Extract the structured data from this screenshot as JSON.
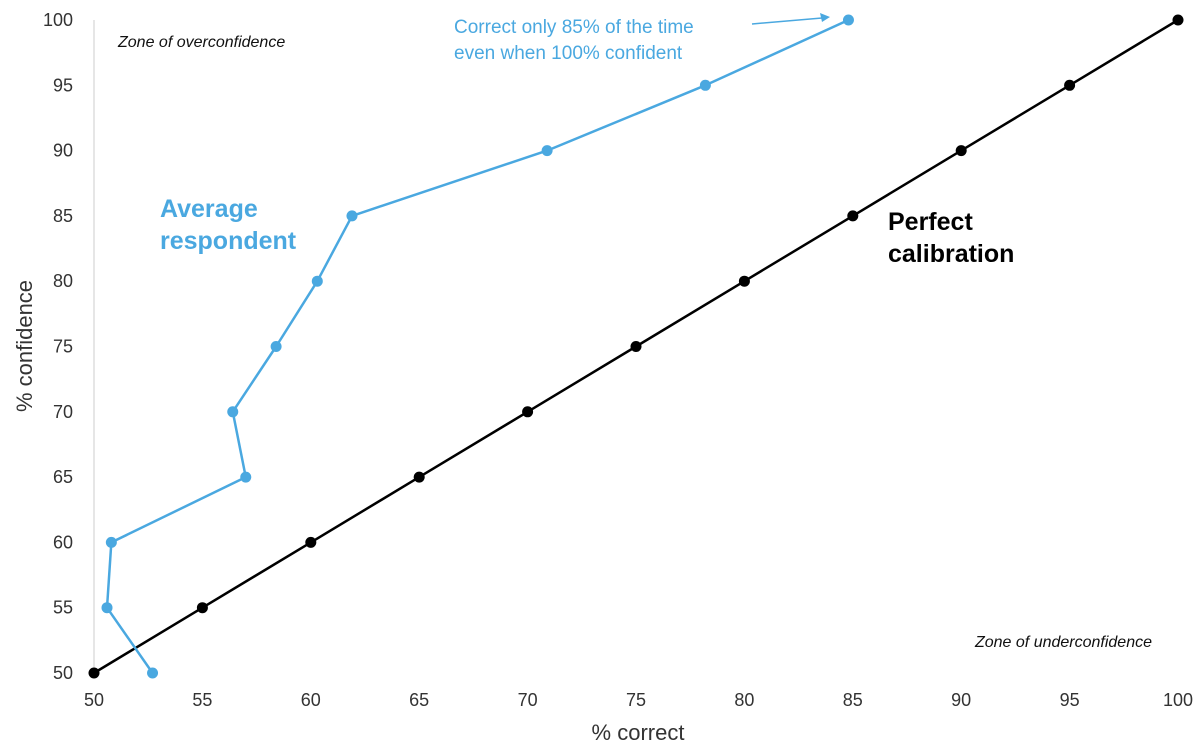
{
  "chart_data": {
    "type": "line",
    "xlabel": "% correct",
    "ylabel": "% confidence",
    "xlim": [
      50,
      100
    ],
    "ylim": [
      50,
      100
    ],
    "x_ticks": [
      50,
      55,
      60,
      65,
      70,
      75,
      80,
      85,
      90,
      95,
      100
    ],
    "y_ticks": [
      50,
      55,
      60,
      65,
      70,
      75,
      80,
      85,
      90,
      95,
      100
    ],
    "grid": false,
    "series": [
      {
        "name_lines": [
          "Average",
          "respondent"
        ],
        "color": "#4aa8e0",
        "points": [
          {
            "x": 52.7,
            "y": 50
          },
          {
            "x": 50.6,
            "y": 55
          },
          {
            "x": 50.8,
            "y": 60
          },
          {
            "x": 57.0,
            "y": 65
          },
          {
            "x": 56.4,
            "y": 70
          },
          {
            "x": 58.4,
            "y": 75
          },
          {
            "x": 60.3,
            "y": 80
          },
          {
            "x": 61.9,
            "y": 85
          },
          {
            "x": 70.9,
            "y": 90
          },
          {
            "x": 78.2,
            "y": 95
          },
          {
            "x": 84.8,
            "y": 100
          }
        ]
      },
      {
        "name_lines": [
          "Perfect",
          "calibration"
        ],
        "color": "#000000",
        "points": [
          {
            "x": 50,
            "y": 50
          },
          {
            "x": 55,
            "y": 55
          },
          {
            "x": 60,
            "y": 60
          },
          {
            "x": 65,
            "y": 65
          },
          {
            "x": 70,
            "y": 70
          },
          {
            "x": 75,
            "y": 75
          },
          {
            "x": 80,
            "y": 80
          },
          {
            "x": 85,
            "y": 85
          },
          {
            "x": 90,
            "y": 90
          },
          {
            "x": 95,
            "y": 95
          },
          {
            "x": 100,
            "y": 100
          }
        ]
      }
    ],
    "annotations": {
      "zone_over": "Zone of overconfidence",
      "zone_under": "Zone of underconfidence",
      "note_line1": "Correct only 85% of the time",
      "note_line2": "even when 100% confident"
    }
  }
}
